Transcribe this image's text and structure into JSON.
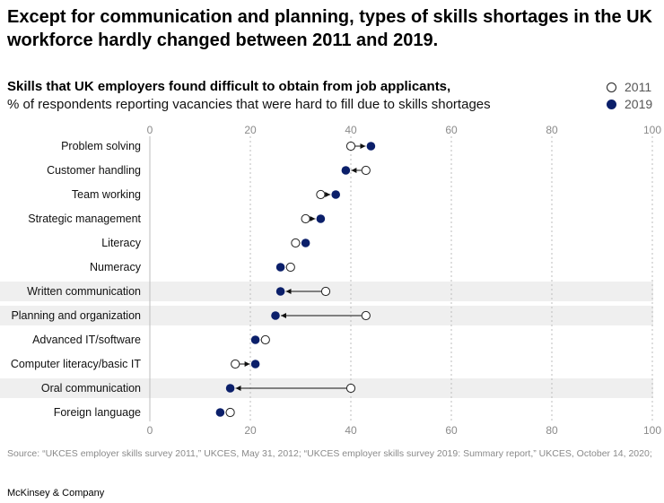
{
  "headline": "Except for communication and planning, types of skills shortages in the UK workforce hardly changed between 2011 and 2019.",
  "legend": {
    "label_2011": "2011",
    "label_2019": "2019",
    "color_2011": "#ffffff",
    "color_2019": "#0b1f6a"
  },
  "chart_data": {
    "type": "dumbbell",
    "title": "Skills that UK employers found difficult to obtain from job applicants,",
    "subtitle": "% of respondents reporting vacancies that were hard to fill due to skills shortages",
    "xlim": [
      0,
      100
    ],
    "xticks": [
      "0",
      "20",
      "40",
      "60",
      "80",
      "100"
    ],
    "highlighted": [
      "Written communication",
      "Planning and organization",
      "Oral communication"
    ],
    "categories": [
      "Problem solving",
      "Customer handling",
      "Team working",
      "Strategic management",
      "Literacy",
      "Numeracy",
      "Written communication",
      "Planning and organization",
      "Advanced IT/software",
      "Computer literacy/basic IT",
      "Oral communication",
      "Foreign language"
    ],
    "series": [
      {
        "name": "2011",
        "values": [
          40,
          43,
          34,
          31,
          29,
          28,
          35,
          43,
          23,
          17,
          40,
          16
        ]
      },
      {
        "name": "2019",
        "values": [
          44,
          39,
          37,
          34,
          31,
          26,
          26,
          25,
          21,
          21,
          16,
          14
        ]
      }
    ]
  },
  "footer": {
    "source": "Source: “UKCES employer skills survey 2011,” UKCES, May 31, 2012; “UKCES employer skills survey 2019: Summary report,” UKCES, October 14, 2020;",
    "brand": "McKinsey & Company"
  }
}
